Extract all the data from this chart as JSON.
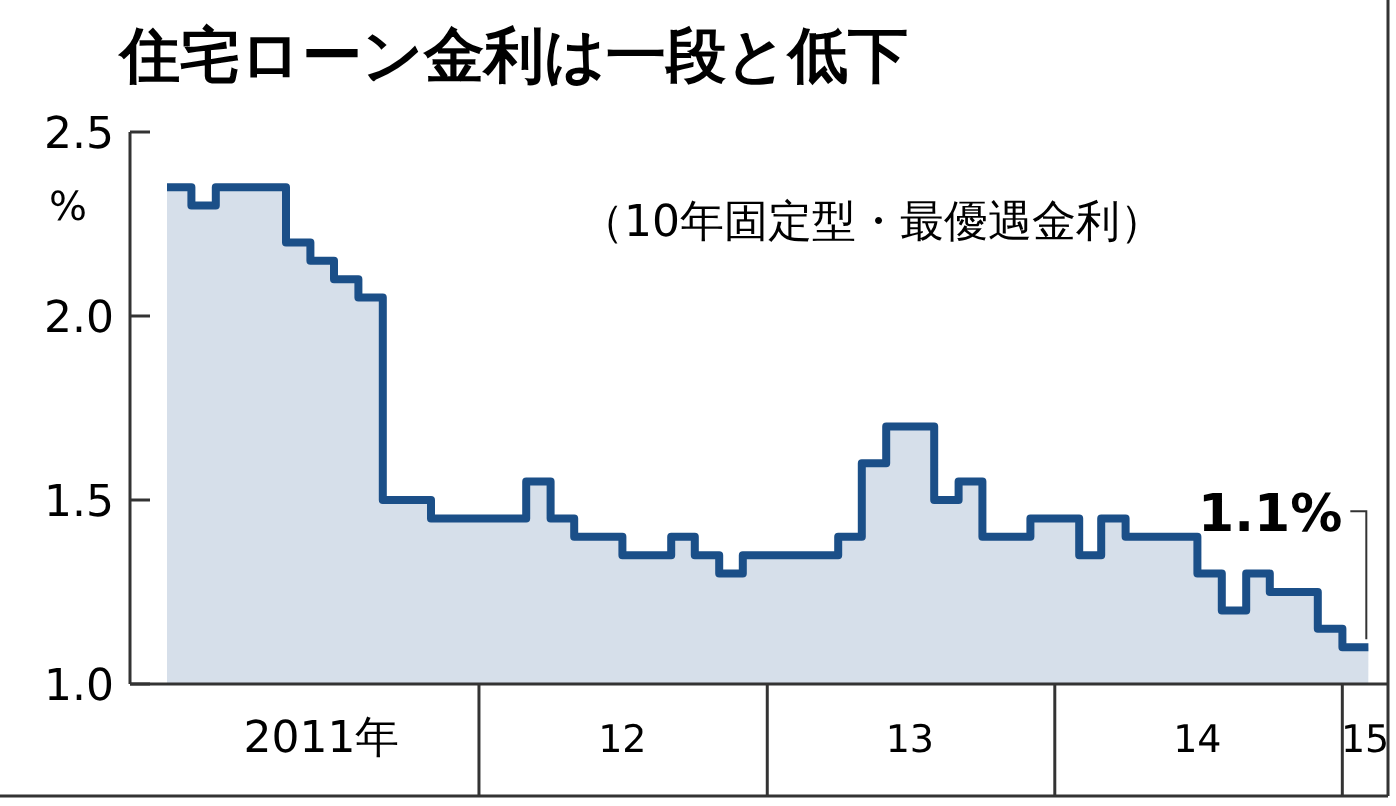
{
  "chart_data": {
    "type": "area",
    "title": "住宅ローン金利は一段と低下",
    "subtitle": "（10年固定型・最優遇金利）",
    "ylabel": "%",
    "x": [
      "2010-12",
      "2011-01",
      "2011-01",
      "2011-02",
      "2011-02",
      "2011-05",
      "2011-05",
      "2011-06",
      "2011-06",
      "2011-07",
      "2011-07",
      "2011-08",
      "2011-08",
      "2011-09",
      "2011-09",
      "2011-11",
      "2011-11",
      "2012-03",
      "2012-03",
      "2012-04",
      "2012-04",
      "2012-05",
      "2012-05",
      "2012-07",
      "2012-07",
      "2012-09",
      "2012-09",
      "2012-10",
      "2012-10",
      "2012-11",
      "2012-11",
      "2012-12",
      "2012-12",
      "2013-04",
      "2013-04",
      "2013-05",
      "2013-05",
      "2013-06",
      "2013-06",
      "2013-08",
      "2013-08",
      "2013-09",
      "2013-09",
      "2013-10",
      "2013-10",
      "2013-12",
      "2013-12",
      "2014-02",
      "2014-02",
      "2014-03",
      "2014-03",
      "2014-04",
      "2014-04",
      "2014-07",
      "2014-07",
      "2014-08",
      "2014-08",
      "2014-09",
      "2014-09",
      "2014-10",
      "2014-10",
      "2014-12",
      "2014-12",
      "2015-01",
      "2015-01",
      "2015-02-03"
    ],
    "series": [
      {
        "color": "#1b4f88",
        "values": [
          2.35,
          2.35,
          2.3,
          2.3,
          2.35,
          2.35,
          2.2,
          2.2,
          2.15,
          2.15,
          2.1,
          2.1,
          2.05,
          2.05,
          1.5,
          1.5,
          1.45,
          1.45,
          1.55,
          1.55,
          1.45,
          1.45,
          1.4,
          1.4,
          1.35,
          1.35,
          1.4,
          1.4,
          1.35,
          1.35,
          1.3,
          1.3,
          1.35,
          1.35,
          1.4,
          1.4,
          1.6,
          1.6,
          1.7,
          1.7,
          1.5,
          1.5,
          1.55,
          1.55,
          1.4,
          1.4,
          1.45,
          1.45,
          1.35,
          1.35,
          1.45,
          1.45,
          1.4,
          1.4,
          1.3,
          1.3,
          1.2,
          1.2,
          1.3,
          1.3,
          1.25,
          1.25,
          1.15,
          1.15,
          1.1,
          1.1
        ]
      }
    ],
    "xlim": [
      "2010-10-15",
      "2015-02-28"
    ],
    "xticks": [
      {
        "value": "2012-01-01",
        "label": null
      },
      {
        "value": "2013-01-01",
        "label": null
      },
      {
        "value": "2014-01-01",
        "label": null
      },
      {
        "value": "2015-01-01",
        "label": null
      },
      {
        "value": "2011-06-15",
        "label": "2011年"
      },
      {
        "value": "2012-07-01",
        "label": "12"
      },
      {
        "value": "2013-07-01",
        "label": "13"
      },
      {
        "value": "2014-07-01",
        "label": "14"
      },
      {
        "value": "2015-01-30",
        "label": "15"
      }
    ],
    "ylim": [
      1.0,
      2.5
    ],
    "yticks": [
      {
        "value": 1.0,
        "label": "1.0"
      },
      1.5,
      {
        "value": 2.0,
        "label": "2.0"
      },
      2.5
    ],
    "annotations": [
      {
        "text": "1.1%",
        "x": "2015-01",
        "y": 1.1
      }
    ]
  }
}
